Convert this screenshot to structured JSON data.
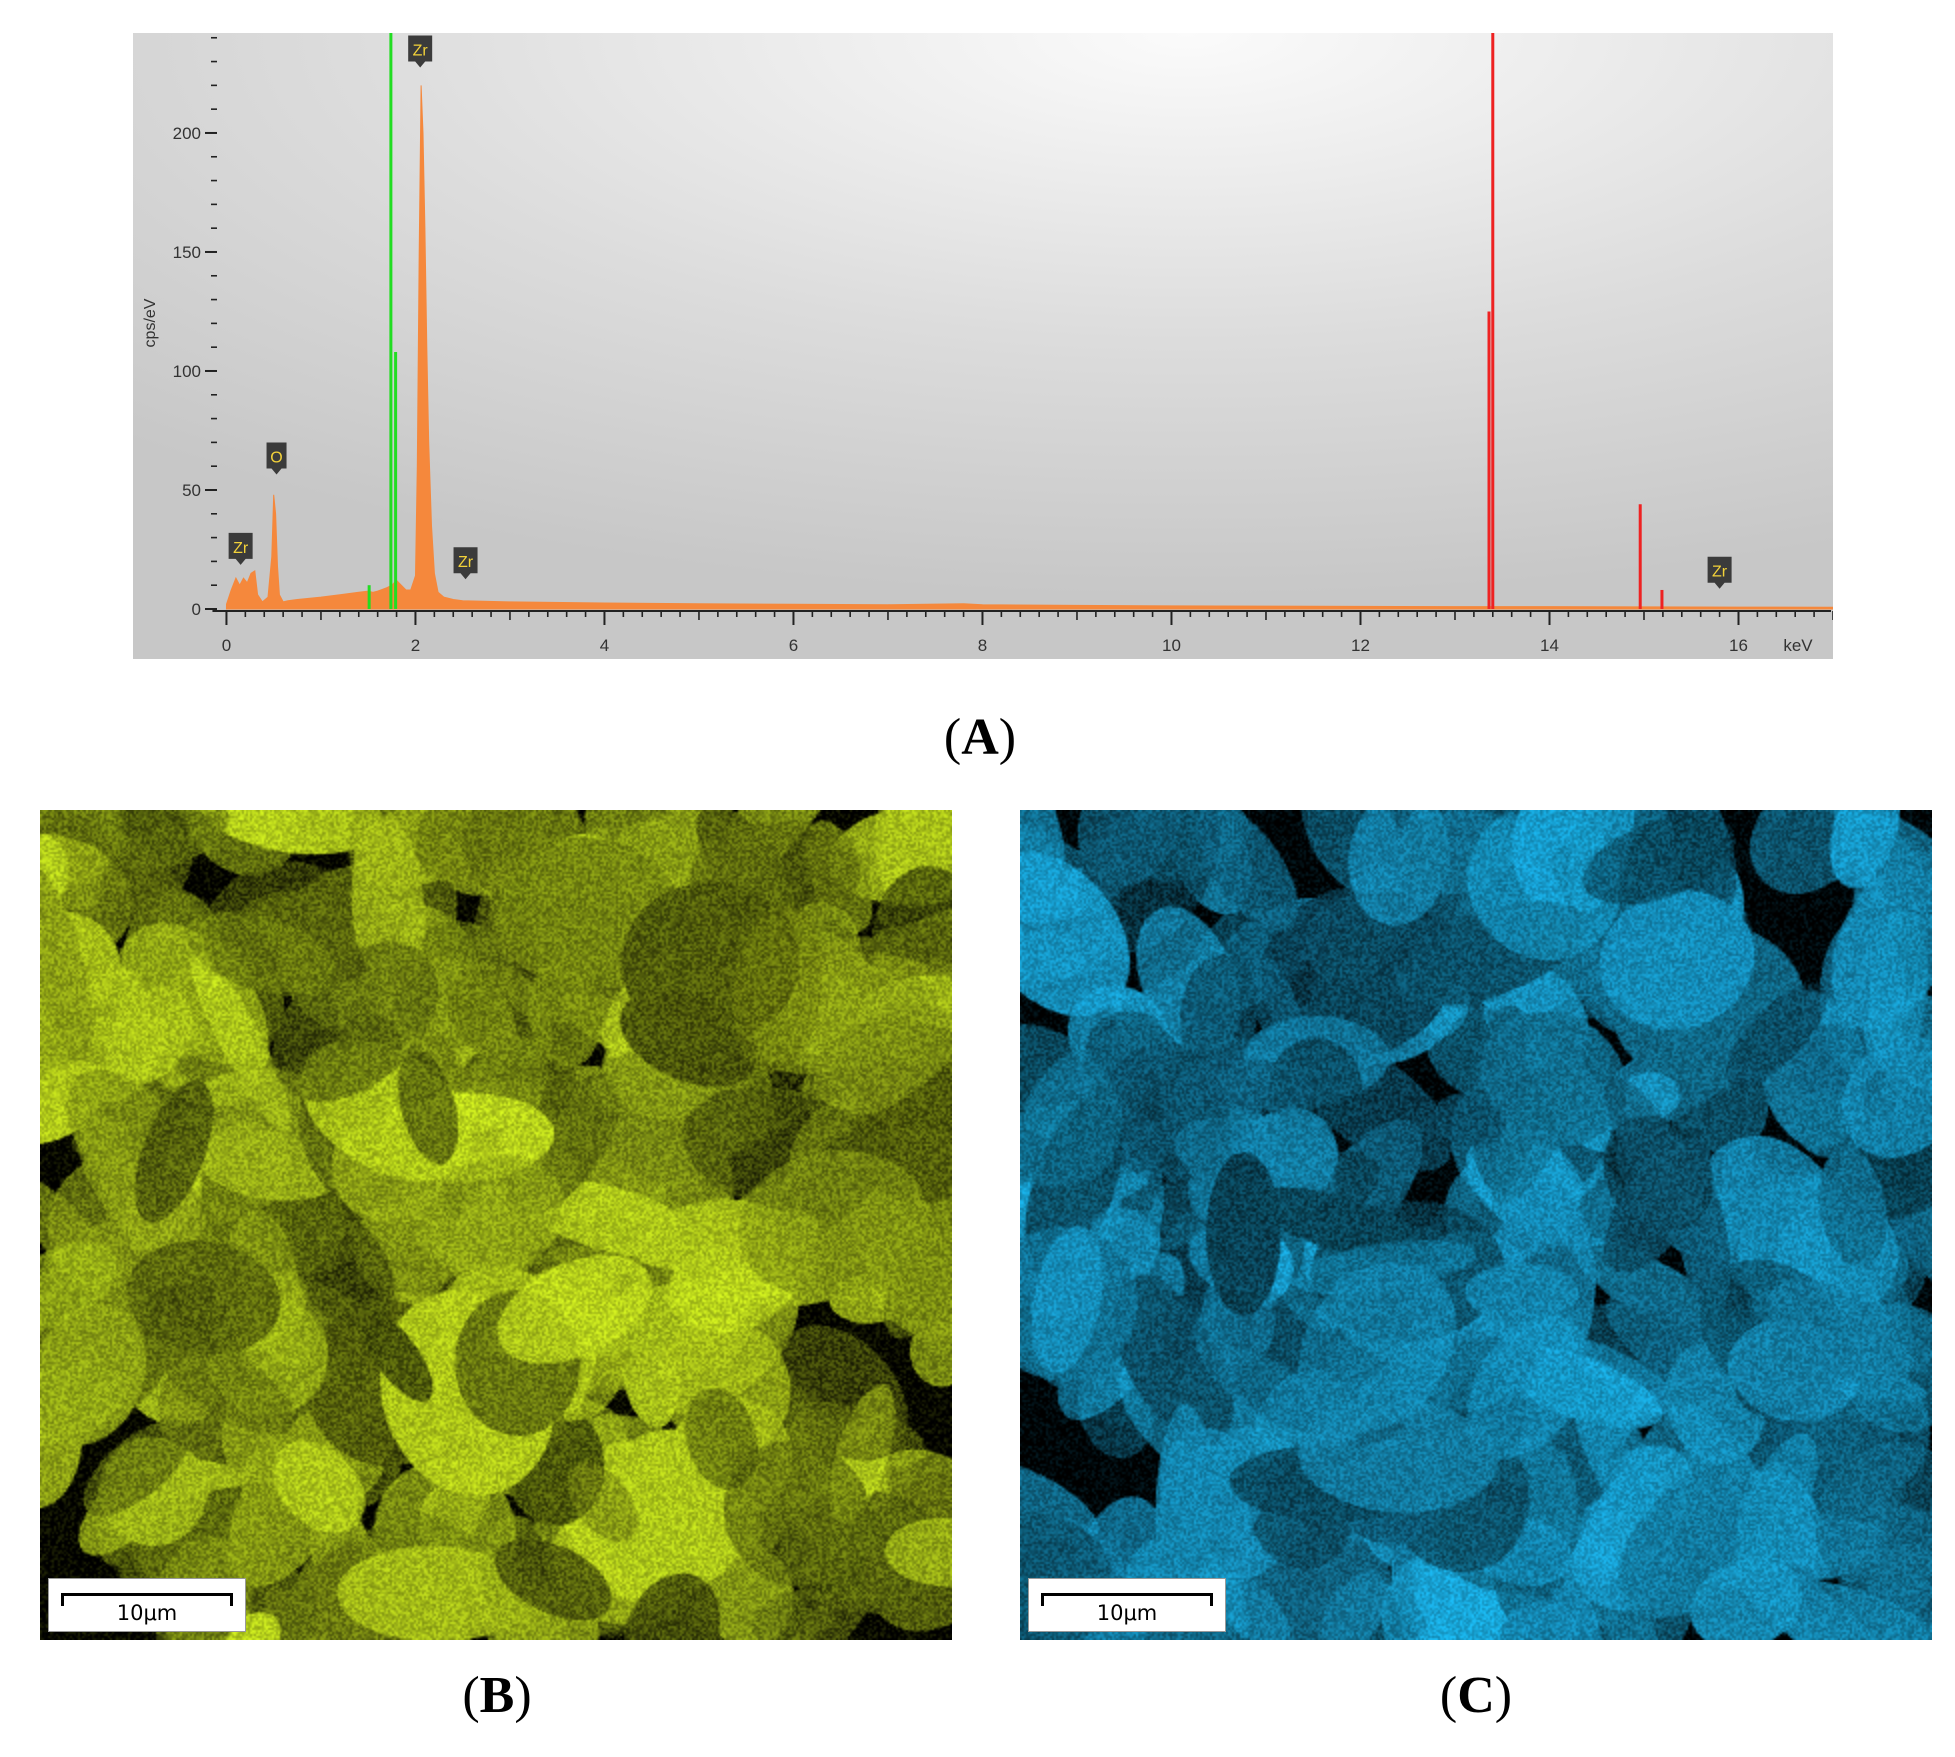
{
  "chart_data": {
    "type": "area",
    "title": "",
    "xlabel": "keV",
    "ylabel": "cps/eV",
    "xlim": [
      -0.1,
      17.0
    ],
    "ylim": [
      0,
      242
    ],
    "x_ticks": [
      0,
      2,
      4,
      6,
      8,
      10,
      12,
      14,
      16
    ],
    "y_ticks": [
      0,
      50,
      100,
      150,
      200
    ],
    "x_tick_labels": [
      "0",
      "2",
      "4",
      "6",
      "8",
      "10",
      "12",
      "14",
      "16"
    ],
    "y_tick_labels": [
      "0",
      "50",
      "100",
      "150",
      "200"
    ],
    "grid": false,
    "legend": "none",
    "series": [
      {
        "fill": "#f5883c",
        "x": [
          0.0,
          0.05,
          0.1,
          0.14,
          0.18,
          0.22,
          0.26,
          0.3,
          0.33,
          0.38,
          0.44,
          0.48,
          0.5,
          0.52,
          0.54,
          0.56,
          0.6,
          0.65,
          0.75,
          1.0,
          1.2,
          1.4,
          1.5,
          1.55,
          1.6,
          1.7,
          1.75,
          1.8,
          1.85,
          1.9,
          1.95,
          2.0,
          2.02,
          2.04,
          2.06,
          2.08,
          2.1,
          2.12,
          2.14,
          2.17,
          2.2,
          2.24,
          2.3,
          2.4,
          2.5,
          3.0,
          4.0,
          5.0,
          6.0,
          7.0,
          7.8,
          8.0,
          9.0,
          10.0,
          11.0,
          12.0,
          13.0,
          14.0,
          15.0,
          16.0,
          17.0
        ],
        "y": [
          2,
          8,
          13,
          10,
          13,
          11,
          15,
          16,
          6,
          3,
          5,
          22,
          48,
          40,
          18,
          6,
          3,
          3.5,
          4,
          5,
          6,
          7,
          7.5,
          7,
          7.5,
          9,
          10,
          12,
          10,
          8,
          8,
          14,
          60,
          150,
          220,
          200,
          160,
          110,
          70,
          35,
          15,
          7,
          5,
          4,
          3.5,
          3,
          2.5,
          2.2,
          2,
          1.8,
          2.2,
          1.8,
          1.5,
          1.3,
          1.2,
          1.1,
          1,
          1,
          0.9,
          0.8,
          0.7
        ]
      }
    ],
    "marker_lines": [
      {
        "color": "#22dd22",
        "x": 1.74,
        "y": 242
      },
      {
        "color": "#22dd22",
        "x": 1.79,
        "y": 108
      },
      {
        "color": "#22dd22",
        "x": 1.51,
        "y": 10
      },
      {
        "color": "#ee2222",
        "x": 13.36,
        "y": 125
      },
      {
        "color": "#ee2222",
        "x": 13.4,
        "y": 242
      },
      {
        "color": "#ee2222",
        "x": 14.96,
        "y": 44
      },
      {
        "color": "#ee2222",
        "x": 15.19,
        "y": 8
      }
    ],
    "annotations": [
      {
        "text": "Zr",
        "x": 0.15,
        "y": 16
      },
      {
        "text": "O",
        "x": 0.53,
        "y": 54
      },
      {
        "text": "Zr",
        "x": 2.05,
        "y": 225
      },
      {
        "text": "Zr",
        "x": 2.53,
        "y": 10
      },
      {
        "text": "Zr",
        "x": 15.8,
        "y": 6
      }
    ]
  },
  "captions": {
    "a": "A",
    "b": "B",
    "c": "C"
  },
  "maps": {
    "b": {
      "color": "#c6e21e",
      "scale_label": "10μm"
    },
    "c": {
      "color": "#19a8dc",
      "scale_label": "10μm"
    }
  }
}
